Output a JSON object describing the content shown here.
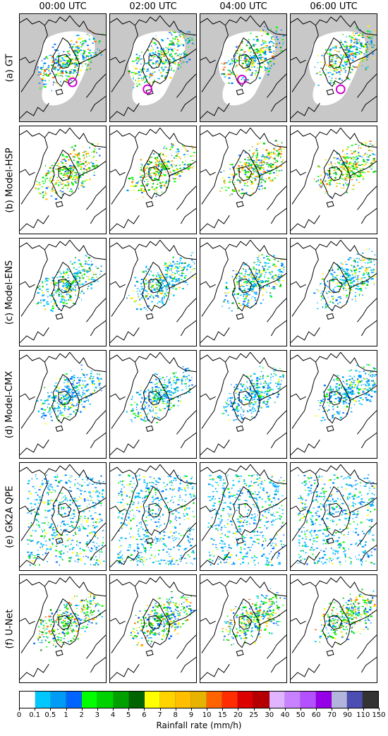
{
  "column_titles": [
    "00:00 UTC",
    "02:00 UTC",
    "04:00 UTC",
    "06:00 UTC"
  ],
  "row_labels": [
    "(a) GT",
    "(b) Model-HSP",
    "(c) Model-ENS",
    "(d) Model-CMX",
    "(e) GK2A QPE",
    "(f) U-Net"
  ],
  "colorbar": {
    "ticks": [
      "0",
      "0.1",
      "0.5",
      "1",
      "2",
      "3",
      "4",
      "5",
      "6",
      "7",
      "8",
      "9",
      "10",
      "15",
      "20",
      "25",
      "30",
      "40",
      "50",
      "60",
      "70",
      "90",
      "110",
      "150"
    ],
    "colors": [
      "#ffffff",
      "#00c8ff",
      "#009bf5",
      "#0064ff",
      "#00ff00",
      "#00d200",
      "#00a000",
      "#006400",
      "#ffff00",
      "#ffd200",
      "#ffbe00",
      "#e6b400",
      "#ff6400",
      "#ff2d00",
      "#dc0000",
      "#b40000",
      "#e0b4ff",
      "#c882ff",
      "#b450ff",
      "#9600e6",
      "#b3b4de",
      "#4c4eb1",
      "#333333"
    ],
    "label": "Rainfall rate (mm/h)"
  },
  "colors": {
    "masked_gray": "#c8c8c8",
    "marker": "#d000d0"
  }
}
